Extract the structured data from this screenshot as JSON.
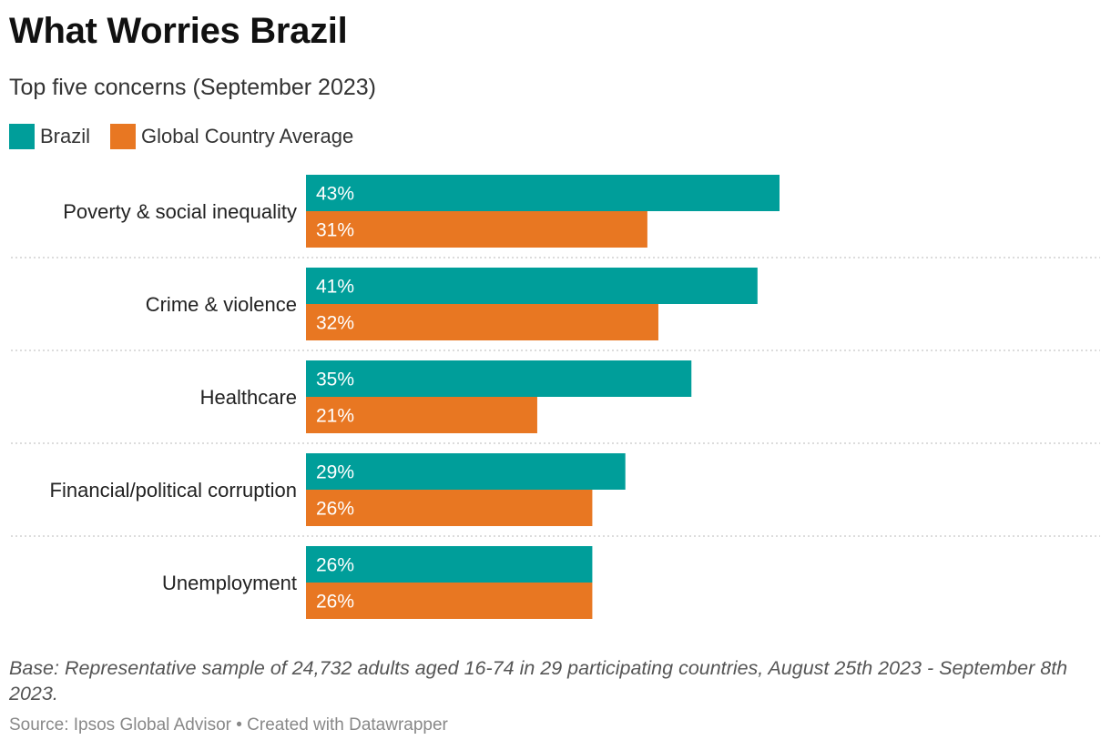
{
  "header": {
    "title": "What Worries Brazil",
    "subtitle": "Top five concerns (September 2023)"
  },
  "colors": {
    "brazil": "#009e9a",
    "global": "#e87722",
    "grid": "#c8c8c8"
  },
  "chart_data": {
    "type": "bar",
    "orientation": "horizontal",
    "categories": [
      "Poverty & social inequality",
      "Crime & violence",
      "Healthcare",
      "Financial/political corruption",
      "Unemployment"
    ],
    "series": [
      {
        "name": "Brazil",
        "values": [
          43,
          41,
          35,
          29,
          26
        ]
      },
      {
        "name": "Global Country Average",
        "values": [
          31,
          32,
          21,
          26,
          26
        ]
      }
    ],
    "value_suffix": "%",
    "xlim": [
      0,
      43
    ],
    "grid": false,
    "legend": "top-left"
  },
  "footer": {
    "note": "Base: Representative sample of 24,732 adults aged 16-74 in 29 participating countries, August 25th 2023 - September 8th 2023.",
    "source": "Source: Ipsos Global Advisor • Created with Datawrapper"
  }
}
